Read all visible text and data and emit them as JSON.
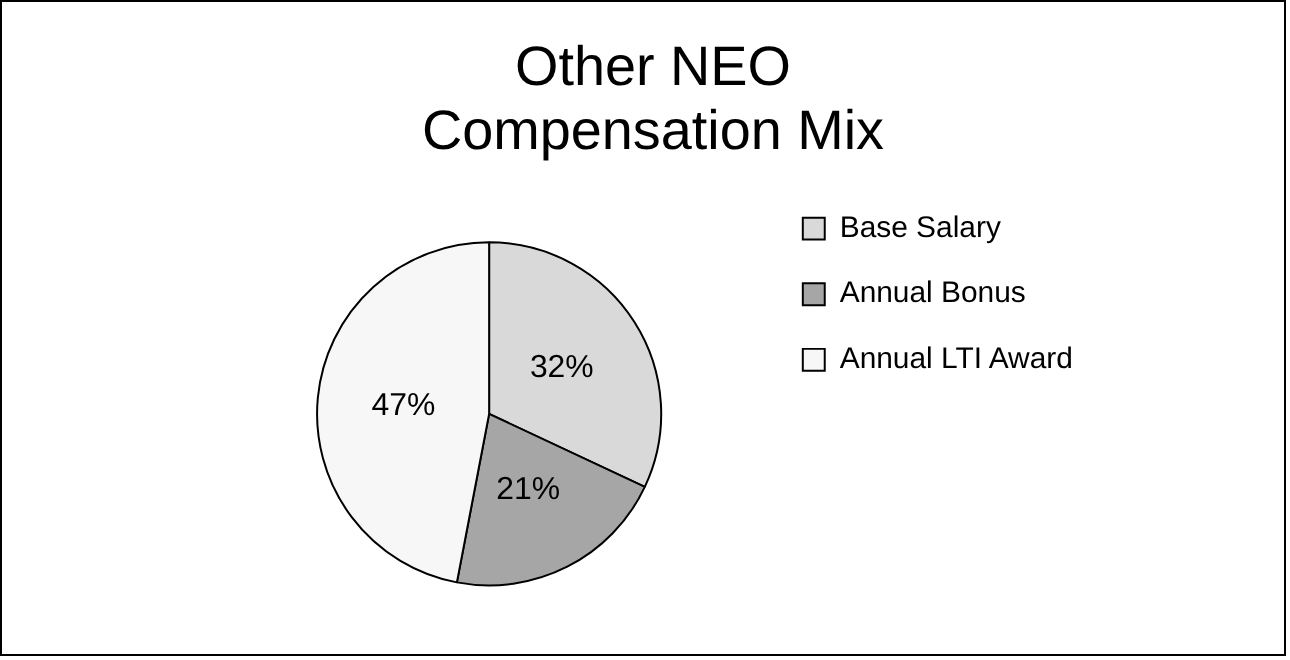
{
  "chart_data": {
    "type": "pie",
    "title": "Other NEO\nCompensation Mix",
    "categories": [
      "Base Salary",
      "Annual Bonus",
      "Annual LTI Award"
    ],
    "values": [
      32,
      21,
      47
    ],
    "colors": [
      "#d9d9d9",
      "#a6a6a6",
      "#f7f7f7"
    ],
    "value_labels": [
      "32%",
      "21%",
      "47%"
    ],
    "legend": "right"
  }
}
